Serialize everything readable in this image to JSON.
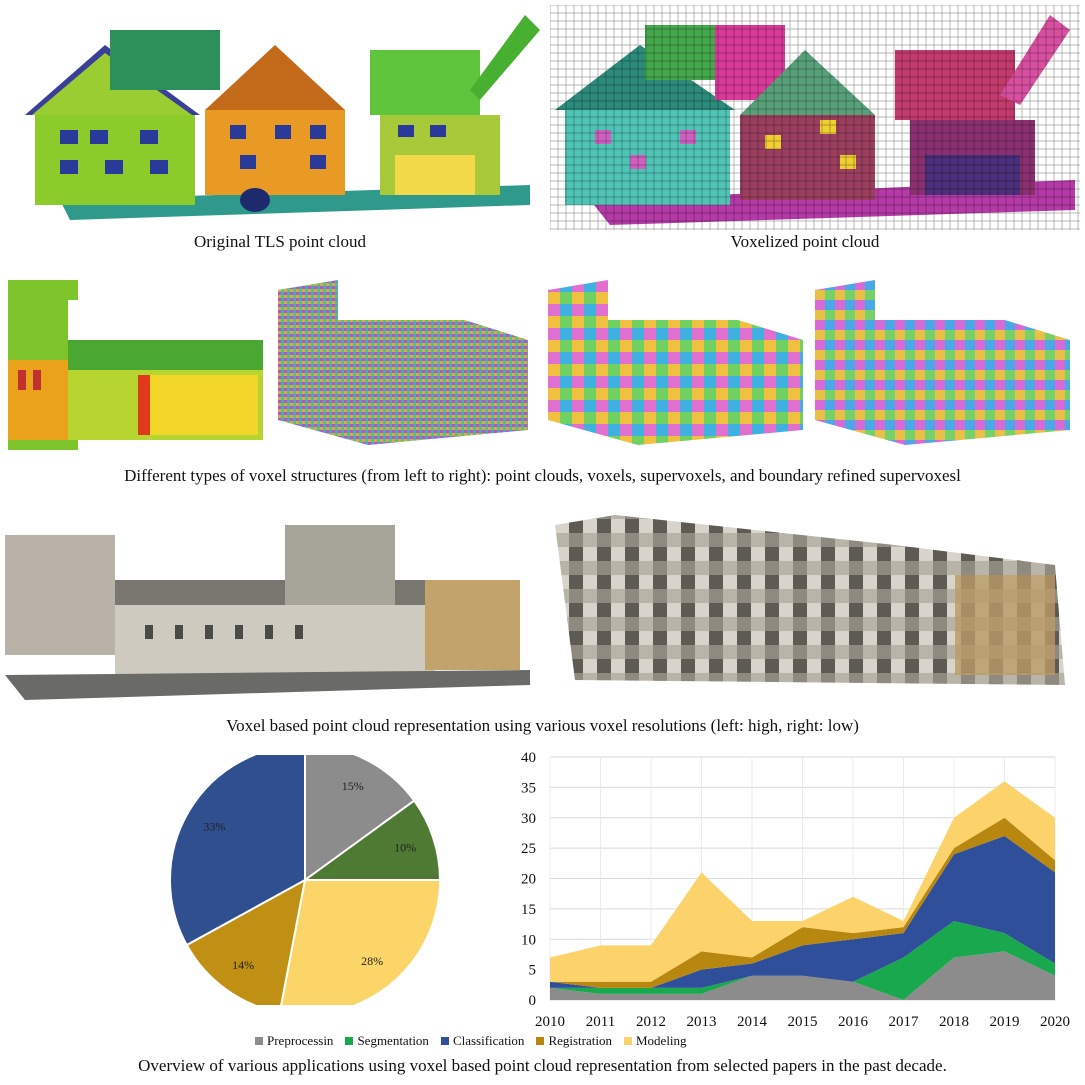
{
  "captions": {
    "tls": "Original TLS point cloud",
    "voxelized": "Voxelized point cloud",
    "types": "Different types of voxel structures (from left to right): point clouds, voxels, supervoxels, and boundary refined supervoxesl",
    "resolution": "Voxel based point cloud representation using various voxel resolutions (left: high, right: low)",
    "overview": "Overview of various applications using voxel based point cloud representation from selected papers in the past decade."
  },
  "chart_data": [
    {
      "type": "pie",
      "slices": [
        {
          "name": "Preprocessin",
          "label": "15%",
          "value": 15,
          "color": "#8c8c8c"
        },
        {
          "name": "Segmentation",
          "label": "10%",
          "value": 10,
          "color": "#4f7a33"
        },
        {
          "name": "Modeling",
          "label": "28%",
          "value": 28,
          "color": "#fbd568"
        },
        {
          "name": "Registration",
          "label": "14%",
          "value": 14,
          "color": "#bf9013"
        },
        {
          "name": "Classification",
          "label": "33%",
          "value": 33,
          "color": "#2f4f8f"
        }
      ]
    },
    {
      "type": "area",
      "stacked": true,
      "x": [
        "2010",
        "2011",
        "2012",
        "2013",
        "2014",
        "2015",
        "2016",
        "2017",
        "2018",
        "2019",
        "2020"
      ],
      "ylim": [
        0,
        40
      ],
      "yticks": [
        0,
        5,
        10,
        15,
        20,
        25,
        30,
        35,
        40
      ],
      "grid": true,
      "legend": "bottom",
      "series": [
        {
          "name": "Preprocessin",
          "color": "#8c8c8c",
          "values": [
            2,
            1,
            1,
            1,
            4,
            4,
            3,
            0,
            7,
            8,
            4
          ]
        },
        {
          "name": "Segmentation",
          "color": "#1aa84f",
          "values": [
            0,
            1,
            1,
            1,
            0,
            0,
            0,
            7,
            6,
            3,
            2
          ]
        },
        {
          "name": "Classification",
          "color": "#2f4f9a",
          "values": [
            1,
            0,
            0,
            3,
            2,
            5,
            7,
            4,
            11,
            16,
            15
          ]
        },
        {
          "name": "Registration",
          "color": "#b8870f",
          "values": [
            0,
            1,
            1,
            3,
            1,
            3,
            1,
            1,
            1,
            3,
            2
          ]
        },
        {
          "name": "Modeling",
          "color": "#fbd36a",
          "values": [
            4,
            6,
            6,
            13,
            6,
            1,
            6,
            1,
            5,
            6,
            7
          ]
        }
      ]
    }
  ]
}
